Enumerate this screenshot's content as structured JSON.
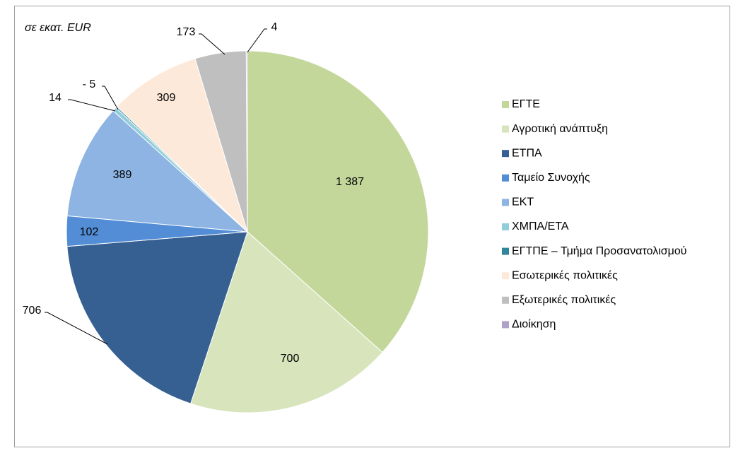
{
  "chart_data": {
    "type": "pie",
    "title": "σε εκατ. EUR",
    "categories": [
      "ΕΓΤΕ",
      "Αγροτική ανάπτυξη",
      "ΕΤΠΑ",
      "Ταμείο Συνοχής",
      "ΕΚΤ",
      "ΧΜΠΑ/ΕΤΑ",
      "ΕΓΤΠΕ – Τμήμα Προσανατολισμού",
      "Εσωτερικές πολιτικές",
      "Εξωτερικές πολιτικές",
      "Διοίκηση"
    ],
    "values": [
      1387,
      700,
      706,
      102,
      389,
      14,
      -5,
      309,
      173,
      4
    ],
    "value_labels": [
      "1 387",
      "700",
      "706",
      "102",
      "389",
      "14",
      "- 5",
      "309",
      "173",
      "4"
    ],
    "colors": [
      "#c4d79b",
      "#d8e4bc",
      "#366092",
      "#538dd5",
      "#8db4e2",
      "#92cddc",
      "#31869b",
      "#fde9d9",
      "#bfbfbf",
      "#b1a0c7"
    ],
    "legend": "right"
  }
}
